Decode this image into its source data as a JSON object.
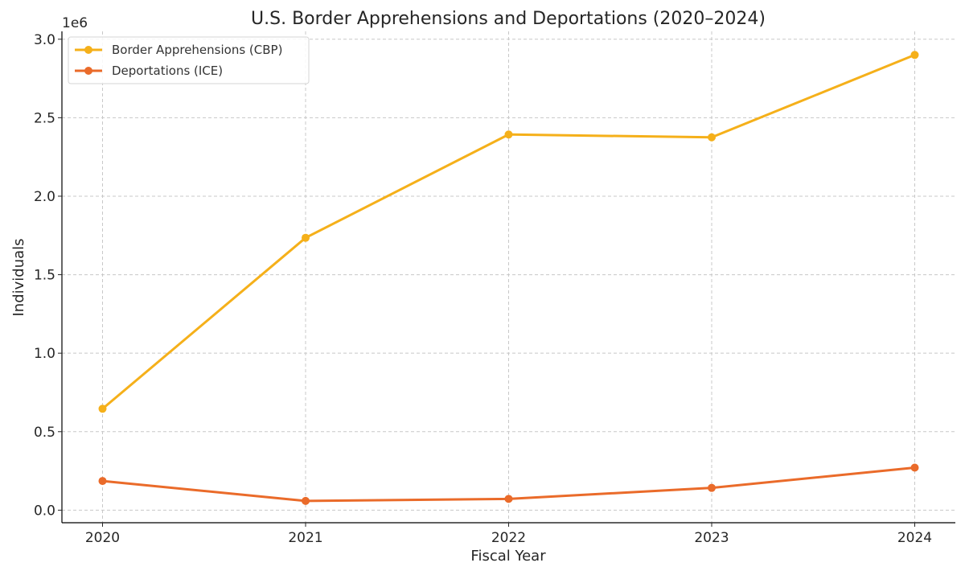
{
  "chart_data": {
    "type": "line",
    "title": "U.S. Border Apprehensions and Deportations (2020–2024)",
    "xlabel": "Fiscal Year",
    "ylabel": "Individuals",
    "offset_label": "1e6",
    "x": [
      2020,
      2021,
      2022,
      2023,
      2024
    ],
    "x_tick_labels": [
      "2020",
      "2021",
      "2022",
      "2023",
      "2024"
    ],
    "y_ticks": [
      0,
      500000,
      1000000,
      1500000,
      2000000,
      2500000,
      3000000
    ],
    "y_tick_labels": [
      "0.0",
      "0.5",
      "1.0",
      "1.5",
      "2.0",
      "2.5",
      "3.0"
    ],
    "xlim": [
      2019.8,
      2024.2
    ],
    "ylim": [
      -80000,
      3050000
    ],
    "grid": true,
    "legend_position": "top-left",
    "series": [
      {
        "name": "Border Apprehensions (CBP)",
        "color": "#F5B01A",
        "values": [
          646000,
          1735000,
          2393000,
          2375000,
          2900000
        ]
      },
      {
        "name": "Deportations (ICE)",
        "color": "#EA6B2A",
        "values": [
          186000,
          59000,
          72000,
          142000,
          271000
        ]
      }
    ]
  }
}
